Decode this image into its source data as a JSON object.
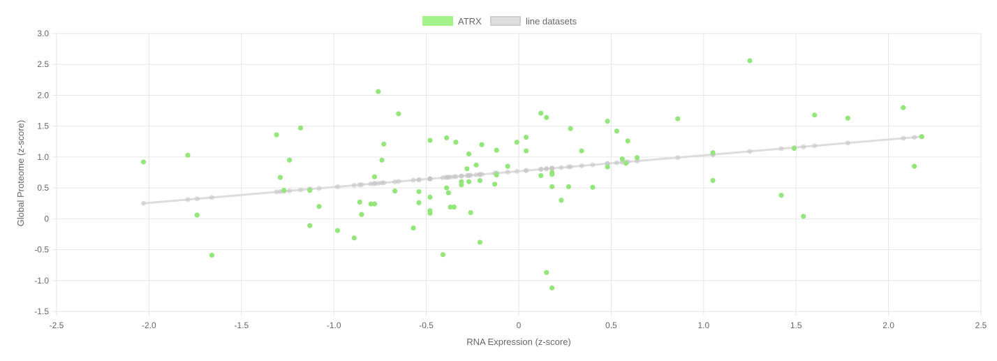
{
  "chart_data": {
    "type": "scatter",
    "title": "",
    "xlabel": "RNA Expression (z-score)",
    "ylabel": "Global Proteome (z-score)",
    "xlim": [
      -2.5,
      2.5
    ],
    "ylim": [
      -1.5,
      3.0
    ],
    "x_ticks": [
      "-2.5",
      "-2.0",
      "-1.5",
      "-1.0",
      "-0.5",
      "0",
      "0.5",
      "1.0",
      "1.5",
      "2.0",
      "2.5"
    ],
    "y_ticks": [
      "3.0",
      "2.5",
      "2.0",
      "1.5",
      "1.0",
      "0.5",
      "0",
      "-0.5",
      "-1.0",
      "-1.5"
    ],
    "grid": true,
    "legend": {
      "position": "top-center",
      "entries": [
        {
          "label": "ATRX",
          "color": "#a3f28a"
        },
        {
          "label": "line datasets",
          "color": "#dedede"
        }
      ]
    },
    "colors": {
      "atrx_fill": "#93e67a",
      "line": "#dddddd",
      "line_point": "#c4c4c4",
      "grid": "#e6e6e6"
    },
    "series": [
      {
        "name": "ATRX",
        "kind": "points",
        "points": [
          [
            -2.03,
            0.92
          ],
          [
            -1.79,
            1.03
          ],
          [
            -1.74,
            0.06
          ],
          [
            -1.66,
            -0.59
          ],
          [
            -1.31,
            1.36
          ],
          [
            -1.29,
            0.67
          ],
          [
            -1.27,
            0.46
          ],
          [
            -1.24,
            0.95
          ],
          [
            -1.18,
            1.47
          ],
          [
            -1.13,
            0.46
          ],
          [
            -1.13,
            -0.11
          ],
          [
            -1.08,
            0.2
          ],
          [
            -0.98,
            -0.19
          ],
          [
            -0.89,
            -0.31
          ],
          [
            -0.86,
            0.27
          ],
          [
            -0.85,
            0.07
          ],
          [
            -0.8,
            0.24
          ],
          [
            -0.78,
            0.24
          ],
          [
            -0.78,
            0.68
          ],
          [
            -0.76,
            2.06
          ],
          [
            -0.74,
            0.95
          ],
          [
            -0.73,
            1.21
          ],
          [
            -0.67,
            0.45
          ],
          [
            -0.65,
            1.7
          ],
          [
            -0.57,
            -0.15
          ],
          [
            -0.54,
            0.44
          ],
          [
            -0.54,
            0.26
          ],
          [
            -0.48,
            1.27
          ],
          [
            -0.48,
            0.13
          ],
          [
            -0.48,
            0.09
          ],
          [
            -0.48,
            0.35
          ],
          [
            -0.41,
            -0.58
          ],
          [
            -0.39,
            1.31
          ],
          [
            -0.39,
            0.5
          ],
          [
            -0.38,
            0.42
          ],
          [
            -0.37,
            0.19
          ],
          [
            -0.35,
            0.19
          ],
          [
            -0.34,
            1.24
          ],
          [
            -0.31,
            0.6
          ],
          [
            -0.31,
            0.55
          ],
          [
            -0.28,
            0.81
          ],
          [
            -0.27,
            1.05
          ],
          [
            -0.27,
            0.6
          ],
          [
            -0.26,
            0.1
          ],
          [
            -0.23,
            0.87
          ],
          [
            -0.21,
            0.62
          ],
          [
            -0.21,
            -0.38
          ],
          [
            -0.2,
            1.2
          ],
          [
            -0.13,
            0.56
          ],
          [
            -0.12,
            0.71
          ],
          [
            -0.12,
            1.11
          ],
          [
            -0.06,
            0.85
          ],
          [
            -0.01,
            1.24
          ],
          [
            0.04,
            1.32
          ],
          [
            0.04,
            1.1
          ],
          [
            0.12,
            0.7
          ],
          [
            0.12,
            1.71
          ],
          [
            0.15,
            1.64
          ],
          [
            0.15,
            -0.87
          ],
          [
            0.18,
            0.75
          ],
          [
            0.18,
            0.52
          ],
          [
            0.18,
            -1.12
          ],
          [
            0.18,
            0.72
          ],
          [
            0.23,
            0.3
          ],
          [
            0.27,
            0.52
          ],
          [
            0.28,
            1.46
          ],
          [
            0.34,
            1.1
          ],
          [
            0.4,
            0.51
          ],
          [
            0.48,
            1.58
          ],
          [
            0.48,
            0.84
          ],
          [
            0.53,
            1.42
          ],
          [
            0.56,
            0.97
          ],
          [
            0.58,
            0.9
          ],
          [
            0.59,
            1.26
          ],
          [
            0.64,
            0.99
          ],
          [
            0.86,
            1.62
          ],
          [
            1.05,
            1.07
          ],
          [
            1.05,
            0.62
          ],
          [
            1.25,
            2.56
          ],
          [
            1.42,
            0.38
          ],
          [
            1.49,
            1.14
          ],
          [
            1.54,
            0.04
          ],
          [
            1.6,
            1.68
          ],
          [
            1.78,
            1.63
          ],
          [
            2.08,
            1.8
          ],
          [
            2.14,
            0.85
          ],
          [
            2.18,
            1.33
          ]
        ]
      },
      {
        "name": "line datasets",
        "kind": "line",
        "line": [
          [
            -2.03,
            0.25
          ],
          [
            2.18,
            1.33
          ]
        ]
      }
    ]
  }
}
